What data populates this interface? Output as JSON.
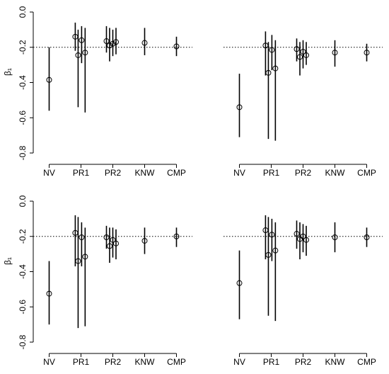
{
  "chart_data": [
    {
      "type": "errorbar",
      "ylabel": "β₁",
      "x": [
        1,
        1.82,
        1.91,
        2.02,
        2.13,
        2.8,
        2.9,
        3.0,
        3.1,
        4,
        5
      ],
      "values": [
        -0.385,
        -0.14,
        -0.245,
        -0.16,
        -0.23,
        -0.165,
        -0.19,
        -0.18,
        -0.17,
        -0.175,
        -0.195
      ],
      "lower": [
        -0.56,
        -0.22,
        -0.54,
        -0.29,
        -0.57,
        -0.23,
        -0.28,
        -0.25,
        -0.24,
        -0.245,
        -0.25
      ],
      "upper": [
        -0.2,
        -0.06,
        -0.1,
        -0.08,
        -0.09,
        -0.08,
        -0.09,
        -0.1,
        -0.09,
        -0.09,
        -0.14
      ],
      "reference_line": -0.2,
      "xlim": [
        0.5,
        5.5
      ],
      "xticks": [
        {
          "value": 1,
          "label": "NV"
        },
        {
          "value": 2,
          "label": "PR1"
        },
        {
          "value": 3,
          "label": "PR2"
        },
        {
          "value": 4,
          "label": "KNW"
        },
        {
          "value": 5,
          "label": "CMP"
        }
      ],
      "ylim": [
        -0.8,
        0
      ],
      "yticks": [
        -0.8,
        -0.6,
        -0.4,
        -0.2,
        {
          "value": 0,
          "label": "0.0"
        }
      ]
    },
    {
      "type": "errorbar",
      "x": [
        1,
        1.82,
        1.91,
        2.02,
        2.13,
        2.8,
        2.9,
        3.0,
        3.1,
        4,
        5
      ],
      "values": [
        -0.54,
        -0.19,
        -0.345,
        -0.215,
        -0.32,
        -0.21,
        -0.255,
        -0.225,
        -0.245,
        -0.23,
        -0.23
      ],
      "lower": [
        -0.71,
        -0.36,
        -0.72,
        -0.33,
        -0.73,
        -0.28,
        -0.36,
        -0.32,
        -0.3,
        -0.31,
        -0.28
      ],
      "upper": [
        -0.35,
        -0.11,
        -0.17,
        -0.13,
        -0.16,
        -0.15,
        -0.17,
        -0.16,
        -0.17,
        -0.16,
        -0.18
      ],
      "reference_line": -0.2,
      "xlim": [
        0.5,
        5.5
      ],
      "xticks": [
        {
          "value": 1,
          "label": "NV"
        },
        {
          "value": 2,
          "label": "PR1"
        },
        {
          "value": 3,
          "label": "PR2"
        },
        {
          "value": 4,
          "label": "KNW"
        },
        {
          "value": 5,
          "label": "CMP"
        }
      ],
      "ylim": [
        -0.8,
        0
      ]
    },
    {
      "type": "errorbar",
      "ylabel": "β₁",
      "x": [
        1,
        1.82,
        1.91,
        2.02,
        2.13,
        2.8,
        2.9,
        3.0,
        3.1,
        4,
        5
      ],
      "values": [
        -0.525,
        -0.18,
        -0.34,
        -0.205,
        -0.315,
        -0.205,
        -0.255,
        -0.22,
        -0.24,
        -0.225,
        -0.2
      ],
      "lower": [
        -0.7,
        -0.37,
        -0.72,
        -0.37,
        -0.71,
        -0.27,
        -0.35,
        -0.32,
        -0.33,
        -0.3,
        -0.26
      ],
      "upper": [
        -0.34,
        -0.08,
        -0.09,
        -0.12,
        -0.15,
        -0.14,
        -0.15,
        -0.15,
        -0.16,
        -0.15,
        -0.15
      ],
      "reference_line": -0.2,
      "xlim": [
        0.5,
        5.5
      ],
      "xticks": [
        {
          "value": 1,
          "label": "NV"
        },
        {
          "value": 2,
          "label": "PR1"
        },
        {
          "value": 3,
          "label": "PR2"
        },
        {
          "value": 4,
          "label": "KNW"
        },
        {
          "value": 5,
          "label": "CMP"
        }
      ],
      "ylim": [
        -0.8,
        0
      ],
      "yticks": [
        -0.8,
        -0.6,
        -0.4,
        -0.2,
        {
          "value": 0,
          "label": "0.0"
        }
      ]
    },
    {
      "type": "errorbar",
      "x": [
        1,
        1.82,
        1.91,
        2.02,
        2.13,
        2.8,
        2.9,
        3.0,
        3.1,
        4,
        5
      ],
      "values": [
        -0.465,
        -0.165,
        -0.305,
        -0.19,
        -0.28,
        -0.185,
        -0.215,
        -0.2,
        -0.22,
        -0.205,
        -0.205
      ],
      "lower": [
        -0.67,
        -0.33,
        -0.65,
        -0.34,
        -0.68,
        -0.27,
        -0.33,
        -0.29,
        -0.31,
        -0.29,
        -0.26
      ],
      "upper": [
        -0.28,
        -0.08,
        -0.09,
        -0.1,
        -0.12,
        -0.11,
        -0.12,
        -0.13,
        -0.14,
        -0.12,
        -0.15
      ],
      "reference_line": -0.2,
      "xlim": [
        0.5,
        5.5
      ],
      "xticks": [
        {
          "value": 1,
          "label": "NV"
        },
        {
          "value": 2,
          "label": "PR1"
        },
        {
          "value": 3,
          "label": "PR2"
        },
        {
          "value": 4,
          "label": "KNW"
        },
        {
          "value": 5,
          "label": "CMP"
        }
      ],
      "ylim": [
        -0.8,
        0
      ]
    }
  ]
}
